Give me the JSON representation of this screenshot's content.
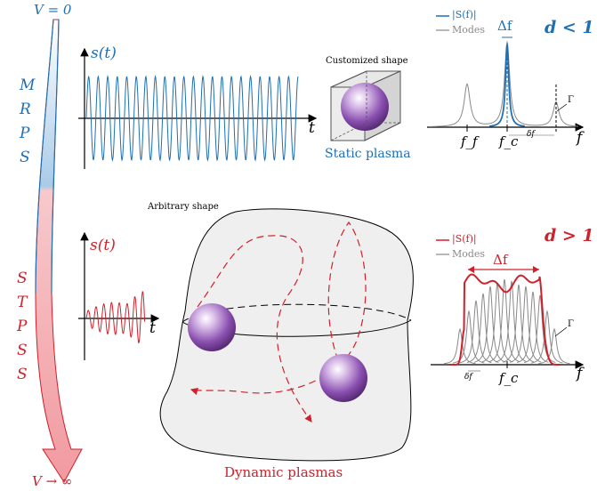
{
  "volume_axis": {
    "top_label": "V = 0",
    "bottom_label": "V → ∞",
    "upper_letters": [
      "M",
      "R",
      "P",
      "S"
    ],
    "lower_letters": [
      "S",
      "T",
      "P",
      "S",
      "S"
    ],
    "upper_color": "#1f6fb2",
    "lower_color": "#d0202a"
  },
  "static_panel": {
    "signal_label": "s(t)",
    "time_label": "t",
    "shape_caption": "Customized shape",
    "plasma_label": "Static plasma",
    "color": "#1f6fb2"
  },
  "static_spectrum": {
    "legend": [
      "|S(f)|",
      "Modes"
    ],
    "bandwidth_label": "Δf",
    "regime_label": "d < 1",
    "ticks": [
      "f_f",
      "f_c"
    ],
    "spacing_label": "δf",
    "damping_label": "Γ",
    "axis_label": "f"
  },
  "dynamic_panel": {
    "signal_label": "s(t)",
    "time_label": "t",
    "shape_caption": "Arbitrary shape",
    "plasma_label": "Dynamic plasmas",
    "color": "#d0202a"
  },
  "dynamic_spectrum": {
    "legend": [
      "|S(f)|",
      "Modes"
    ],
    "bandwidth_label": "Δf",
    "regime_label": "d > 1",
    "ticks": [
      "δf",
      "f_c"
    ],
    "damping_label": "Γ",
    "axis_label": "f"
  },
  "colors": {
    "blue": "#1f6fb2",
    "red": "#d0202a",
    "gray": "#888888",
    "sphere": "#8a4fb0"
  }
}
